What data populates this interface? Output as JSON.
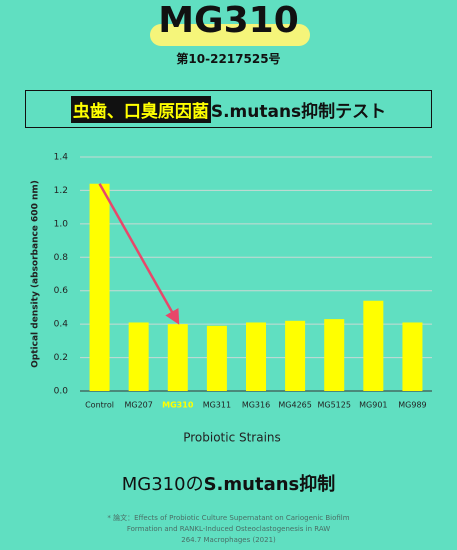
{
  "header": {
    "title": "MG310",
    "registration": "第10-2217525号",
    "box_title_highlight": "虫歯、口臭原因菌",
    "box_title_rest": "S.mutans抑制テスト"
  },
  "chart_data": {
    "type": "bar",
    "categories": [
      "Control",
      "MG207",
      "MG310",
      "MG311",
      "MG316",
      "MG4265",
      "MG5125",
      "MG901",
      "MG989"
    ],
    "values": [
      1.24,
      0.41,
      0.4,
      0.39,
      0.41,
      0.42,
      0.43,
      0.54,
      0.41
    ],
    "color": "#ffff00",
    "category_label_colors": [
      "#222222",
      "#222222",
      "#ffff00",
      "#222222",
      "#222222",
      "#222222",
      "#222222",
      "#222222",
      "#222222"
    ],
    "ylim": [
      0,
      1.4
    ],
    "yticks": [
      {
        "value": 0,
        "label": "0.0"
      },
      0.2,
      0.4,
      0.6,
      0.8,
      {
        "value": 1,
        "label": "1.0"
      },
      1.2,
      1.4
    ],
    "grid": true,
    "y_label": "Optical density (absorbance 600 nm)",
    "x_label": "Probiotic Strains",
    "arrow_color": "#e8476a"
  },
  "footer": {
    "caption_normal": "MG310の",
    "caption_bold": "S.mutans抑制",
    "note_lines": [
      "* 論文：Effects of Probiotic Culture Supernatant on Cariogenic Biofilm",
      "Formation and RANKL-Induced Osteoclastogenesis in RAW",
      "264.7 Macrophages (2021)"
    ]
  }
}
